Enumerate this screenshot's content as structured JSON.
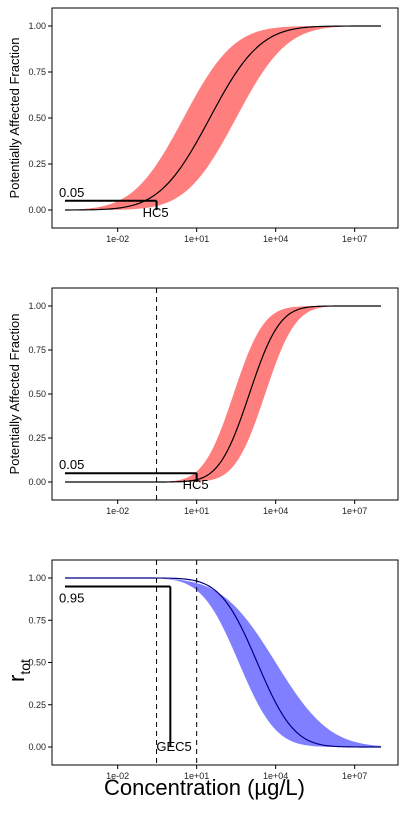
{
  "figure": {
    "xlabel": "Concentration (µg/L)"
  },
  "chart_data": [
    {
      "type": "line",
      "panel": "top",
      "ylabel": "Potentially Affected Fraction",
      "x_scale": "log10",
      "xlim": [
        0.0001,
        100000000
      ],
      "ylim": [
        0,
        1
      ],
      "x_ticks": [
        "1e-02",
        "1e+01",
        "1e+04",
        "1e+07"
      ],
      "x_tick_values": [
        0.01,
        10,
        10000,
        10000000
      ],
      "y_ticks": [
        "0.00",
        "0.25",
        "0.50",
        "0.75",
        "1.00"
      ],
      "y_tick_values": [
        0,
        0.25,
        0.5,
        0.75,
        1
      ],
      "band_color": "#ff7f7f",
      "line_color": "#000000",
      "series": [
        {
          "mu_log10": 1.5,
          "sigma_log10": 1.5,
          "x_from": 0.0001,
          "x_to": 100000000,
          "lower": {
            "mu_log10": 0.5,
            "sigma_log10": 1.5
          },
          "upper": {
            "mu_log10": 2.5,
            "sigma_log10": 1.5
          }
        }
      ],
      "threshold": {
        "y": 0.05,
        "y_label": "0.05",
        "x": 0.3,
        "x_label": "HC5"
      },
      "grid": false
    },
    {
      "type": "line",
      "panel": "middle",
      "ylabel": "Potentially Affected Fraction",
      "x_scale": "log10",
      "xlim": [
        0.0001,
        100000000
      ],
      "ylim": [
        0,
        1
      ],
      "x_ticks": [
        "1e-02",
        "1e+01",
        "1e+04",
        "1e+07"
      ],
      "x_tick_values": [
        0.01,
        10,
        10000,
        10000000
      ],
      "y_ticks": [
        "0.00",
        "0.25",
        "0.50",
        "0.75",
        "1.00"
      ],
      "y_tick_values": [
        0,
        0.25,
        0.5,
        0.75,
        1
      ],
      "band_color": "#ff7f7f",
      "line_color": "#000000",
      "series": [
        {
          "mu_log10": 3.0,
          "sigma_log10": 0.9,
          "x_from": 0.0001,
          "x_to": 100000000,
          "lower": {
            "mu_log10": 2.4,
            "sigma_log10": 0.9
          },
          "upper": {
            "mu_log10": 3.6,
            "sigma_log10": 0.9
          }
        }
      ],
      "threshold": {
        "y": 0.05,
        "y_label": "0.05",
        "x": 10,
        "x_label": "HC5"
      },
      "vline_dashed": [
        0.3
      ],
      "grid": false
    },
    {
      "type": "line",
      "panel": "bottom",
      "ylabel": "r",
      "ylabel_sub": "tot",
      "x_scale": "log10",
      "xlim": [
        0.0001,
        100000000
      ],
      "ylim": [
        0,
        1
      ],
      "x_ticks": [
        "1e-02",
        "1e+01",
        "1e+04",
        "1e+07"
      ],
      "x_tick_values": [
        0.01,
        10,
        10000,
        10000000
      ],
      "y_ticks": [
        "0.00",
        "0.25",
        "0.50",
        "0.75",
        "1.00"
      ],
      "y_tick_values": [
        0,
        0.25,
        0.5,
        0.75,
        1
      ],
      "band_color": "#7f7fff",
      "line_color": "#000080",
      "series": [
        {
          "mu_log10": 3.3,
          "sigma_log10": 1.1,
          "decreasing": true,
          "x_from": 0.0001,
          "x_to": 100000000,
          "lower": {
            "mu_log10": 2.6,
            "sigma_log10": 1.1
          },
          "upper": {
            "mu_log10": 4.0,
            "sigma_log10": 1.6
          }
        }
      ],
      "threshold": {
        "y": 0.95,
        "y_label": "0.95",
        "x": 1,
        "x_label": "GEC5"
      },
      "vline_dashed": [
        0.3,
        10
      ],
      "grid": false
    }
  ]
}
